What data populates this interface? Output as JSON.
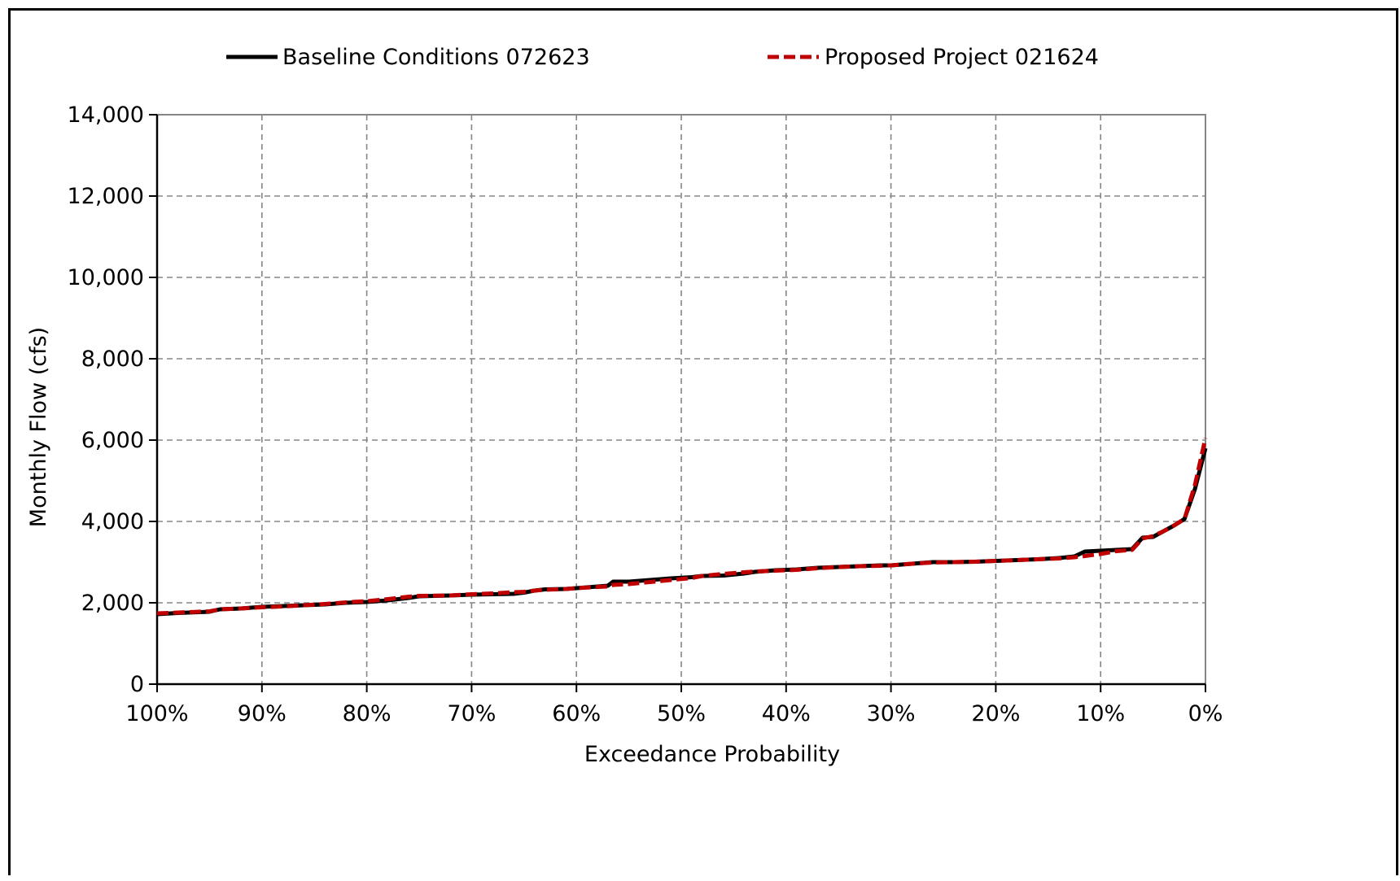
{
  "chart_data": {
    "type": "line",
    "title": "",
    "xlabel": "Exceedance Probability",
    "ylabel": "Monthly Flow (cfs)",
    "xlim": [
      100,
      0
    ],
    "ylim": [
      0,
      14000
    ],
    "x_reversed": true,
    "grid": true,
    "legend_position": "top",
    "x_ticks": [
      100,
      90,
      80,
      70,
      60,
      50,
      40,
      30,
      20,
      10,
      0
    ],
    "x_tick_labels": [
      "100%",
      "90%",
      "80%",
      "70%",
      "60%",
      "50%",
      "40%",
      "30%",
      "20%",
      "10%",
      "0%"
    ],
    "y_ticks": [
      0,
      2000,
      4000,
      6000,
      8000,
      10000,
      12000,
      14000
    ],
    "y_tick_labels": [
      "0",
      "2,000",
      "4,000",
      "6,000",
      "8,000",
      "10,000",
      "12,000",
      "14,000"
    ],
    "series": [
      {
        "name": "Baseline Conditions 072623",
        "color": "#000000",
        "line_style": "solid",
        "points": [
          [
            100,
            1720
          ],
          [
            98,
            1750
          ],
          [
            95,
            1780
          ],
          [
            94,
            1840
          ],
          [
            92,
            1860
          ],
          [
            90,
            1900
          ],
          [
            88,
            1920
          ],
          [
            86,
            1940
          ],
          [
            84,
            1960
          ],
          [
            82,
            2000
          ],
          [
            80,
            2020
          ],
          [
            78,
            2060
          ],
          [
            76,
            2120
          ],
          [
            75,
            2160
          ],
          [
            72,
            2180
          ],
          [
            70,
            2200
          ],
          [
            68,
            2210
          ],
          [
            66,
            2220
          ],
          [
            65,
            2250
          ],
          [
            64,
            2300
          ],
          [
            63,
            2330
          ],
          [
            61,
            2340
          ],
          [
            60,
            2360
          ],
          [
            58,
            2400
          ],
          [
            57,
            2420
          ],
          [
            56.5,
            2520
          ],
          [
            55,
            2520
          ],
          [
            53,
            2560
          ],
          [
            51,
            2600
          ],
          [
            49,
            2630
          ],
          [
            48,
            2660
          ],
          [
            46,
            2670
          ],
          [
            44,
            2720
          ],
          [
            43,
            2760
          ],
          [
            41,
            2800
          ],
          [
            39,
            2820
          ],
          [
            37,
            2860
          ],
          [
            35,
            2880
          ],
          [
            33,
            2900
          ],
          [
            31,
            2920
          ],
          [
            30,
            2920
          ],
          [
            28,
            2960
          ],
          [
            26,
            3000
          ],
          [
            24,
            3000
          ],
          [
            22,
            3010
          ],
          [
            20,
            3030
          ],
          [
            18,
            3050
          ],
          [
            16,
            3070
          ],
          [
            14,
            3100
          ],
          [
            12.5,
            3140
          ],
          [
            11.5,
            3260
          ],
          [
            10,
            3280
          ],
          [
            8.5,
            3300
          ],
          [
            7,
            3320
          ],
          [
            6,
            3600
          ],
          [
            5,
            3620
          ],
          [
            4,
            3760
          ],
          [
            3,
            3900
          ],
          [
            2,
            4060
          ],
          [
            1,
            4800
          ],
          [
            0,
            5800
          ]
        ]
      },
      {
        "name": "Proposed Project 021624",
        "color": "#c00000",
        "line_style": "dashed",
        "points": [
          [
            100,
            1740
          ],
          [
            98,
            1760
          ],
          [
            95,
            1790
          ],
          [
            94,
            1840
          ],
          [
            92,
            1860
          ],
          [
            90,
            1890
          ],
          [
            88,
            1910
          ],
          [
            86,
            1940
          ],
          [
            84,
            1970
          ],
          [
            82,
            2010
          ],
          [
            80,
            2040
          ],
          [
            78,
            2090
          ],
          [
            76,
            2150
          ],
          [
            75,
            2170
          ],
          [
            72,
            2180
          ],
          [
            70,
            2210
          ],
          [
            68,
            2230
          ],
          [
            66,
            2260
          ],
          [
            65,
            2270
          ],
          [
            64,
            2300
          ],
          [
            63,
            2320
          ],
          [
            61,
            2340
          ],
          [
            60,
            2360
          ],
          [
            58,
            2390
          ],
          [
            57,
            2400
          ],
          [
            56.5,
            2440
          ],
          [
            55,
            2460
          ],
          [
            53,
            2510
          ],
          [
            51,
            2560
          ],
          [
            49,
            2610
          ],
          [
            48,
            2660
          ],
          [
            46,
            2710
          ],
          [
            44,
            2750
          ],
          [
            43,
            2770
          ],
          [
            41,
            2790
          ],
          [
            39,
            2810
          ],
          [
            37,
            2850
          ],
          [
            35,
            2880
          ],
          [
            33,
            2900
          ],
          [
            31,
            2910
          ],
          [
            30,
            2920
          ],
          [
            28,
            2960
          ],
          [
            26,
            2990
          ],
          [
            24,
            3000
          ],
          [
            22,
            3010
          ],
          [
            20,
            3030
          ],
          [
            18,
            3050
          ],
          [
            16,
            3070
          ],
          [
            14,
            3090
          ],
          [
            12.5,
            3120
          ],
          [
            11.5,
            3150
          ],
          [
            10,
            3200
          ],
          [
            8.5,
            3270
          ],
          [
            7,
            3300
          ],
          [
            6,
            3580
          ],
          [
            5,
            3640
          ],
          [
            4,
            3760
          ],
          [
            3,
            3900
          ],
          [
            2,
            4060
          ],
          [
            1,
            4900
          ],
          [
            0,
            6050
          ]
        ]
      }
    ]
  }
}
